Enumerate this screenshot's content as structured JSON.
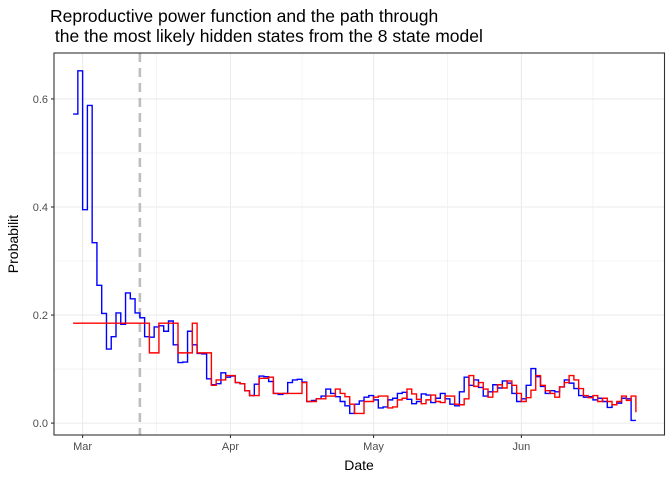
{
  "chart_data": {
    "type": "line",
    "title_lines": [
      "Reproductive power function and the path through",
      " the the most likely hidden states from the 8 state model"
    ],
    "xlabel": "Date",
    "ylabel": "Probabilit",
    "x_ticks": [
      {
        "label": "Mar",
        "date": "2020-03-01"
      },
      {
        "label": "Apr",
        "date": "2020-04-01"
      },
      {
        "label": "May",
        "date": "2020-05-01"
      },
      {
        "label": "Jun",
        "date": "2020-06-01"
      }
    ],
    "y_ticks": [
      0.0,
      0.2,
      0.4,
      0.6
    ],
    "y_tick_labels": [
      "0.0",
      "0.2",
      "0.4",
      "0.6"
    ],
    "xlim": [
      "2020-02-24",
      "2020-07-01"
    ],
    "ylim": [
      -0.022,
      0.685
    ],
    "grid": true,
    "vline": {
      "date": "2020-03-13",
      "style": "dashed",
      "color": "#bebebe"
    },
    "colors": {
      "series_blue": "#0000ff",
      "series_red": "#ff0000",
      "panel_border": "#333333",
      "grid": "#ebebeb"
    },
    "series": [
      {
        "color": "#0000ff",
        "step": true,
        "x": [
          "2020-02-28",
          "2020-02-29",
          "2020-03-01",
          "2020-03-02",
          "2020-03-03",
          "2020-03-04",
          "2020-03-05",
          "2020-03-06",
          "2020-03-07",
          "2020-03-08",
          "2020-03-09",
          "2020-03-10",
          "2020-03-11",
          "2020-03-12",
          "2020-03-13",
          "2020-03-14",
          "2020-03-15",
          "2020-03-16",
          "2020-03-17",
          "2020-03-18",
          "2020-03-19",
          "2020-03-20",
          "2020-03-21",
          "2020-03-22",
          "2020-03-23",
          "2020-03-24",
          "2020-03-25",
          "2020-03-26",
          "2020-03-27",
          "2020-03-28",
          "2020-03-29",
          "2020-03-30",
          "2020-03-31",
          "2020-04-01",
          "2020-04-02",
          "2020-04-03",
          "2020-04-04",
          "2020-04-05",
          "2020-04-06",
          "2020-04-07",
          "2020-04-08",
          "2020-04-09",
          "2020-04-10",
          "2020-04-11",
          "2020-04-12",
          "2020-04-13",
          "2020-04-14",
          "2020-04-15",
          "2020-04-16",
          "2020-04-17",
          "2020-04-18",
          "2020-04-19",
          "2020-04-20",
          "2020-04-21",
          "2020-04-22",
          "2020-04-23",
          "2020-04-24",
          "2020-04-25",
          "2020-04-26",
          "2020-04-27",
          "2020-04-28",
          "2020-04-29",
          "2020-04-30",
          "2020-05-01",
          "2020-05-02",
          "2020-05-03",
          "2020-05-04",
          "2020-05-05",
          "2020-05-06",
          "2020-05-07",
          "2020-05-08",
          "2020-05-09",
          "2020-05-10",
          "2020-05-11",
          "2020-05-12",
          "2020-05-13",
          "2020-05-14",
          "2020-05-15",
          "2020-05-16",
          "2020-05-17",
          "2020-05-18",
          "2020-05-19",
          "2020-05-20",
          "2020-05-21",
          "2020-05-22",
          "2020-05-23",
          "2020-05-24",
          "2020-05-25",
          "2020-05-26",
          "2020-05-27",
          "2020-05-28",
          "2020-05-29",
          "2020-05-30",
          "2020-05-31",
          "2020-06-01",
          "2020-06-02",
          "2020-06-03",
          "2020-06-04",
          "2020-06-05",
          "2020-06-06",
          "2020-06-07",
          "2020-06-08",
          "2020-06-09",
          "2020-06-10",
          "2020-06-11",
          "2020-06-12",
          "2020-06-13",
          "2020-06-14",
          "2020-06-15",
          "2020-06-16",
          "2020-06-17",
          "2020-06-18",
          "2020-06-19",
          "2020-06-20",
          "2020-06-21",
          "2020-06-22",
          "2020-06-23",
          "2020-06-24",
          "2020-06-25"
        ],
        "y": [
          0.572,
          0.652,
          0.395,
          0.588,
          0.334,
          0.255,
          0.203,
          0.137,
          0.16,
          0.204,
          0.183,
          0.241,
          0.23,
          0.204,
          0.195,
          0.16,
          0.159,
          0.178,
          0.18,
          0.17,
          0.189,
          0.145,
          0.112,
          0.113,
          0.17,
          0.145,
          0.129,
          0.128,
          0.082,
          0.071,
          0.073,
          0.093,
          0.085,
          0.087,
          0.075,
          0.073,
          0.06,
          0.051,
          0.072,
          0.087,
          0.086,
          0.077,
          0.055,
          0.053,
          0.055,
          0.075,
          0.08,
          0.081,
          0.076,
          0.04,
          0.042,
          0.045,
          0.05,
          0.063,
          0.055,
          0.049,
          0.04,
          0.032,
          0.018,
          0.035,
          0.041,
          0.048,
          0.051,
          0.043,
          0.028,
          0.03,
          0.043,
          0.046,
          0.055,
          0.057,
          0.044,
          0.036,
          0.04,
          0.054,
          0.052,
          0.038,
          0.046,
          0.055,
          0.045,
          0.035,
          0.032,
          0.058,
          0.085,
          0.07,
          0.08,
          0.066,
          0.05,
          0.058,
          0.071,
          0.065,
          0.078,
          0.074,
          0.055,
          0.04,
          0.045,
          0.07,
          0.101,
          0.086,
          0.068,
          0.055,
          0.06,
          0.058,
          0.067,
          0.08,
          0.074,
          0.064,
          0.051,
          0.048,
          0.049,
          0.043,
          0.046,
          0.04,
          0.029,
          0.034,
          0.037,
          0.046,
          0.045,
          0.005,
          0.005
        ]
      },
      {
        "color": "#ff0000",
        "step": true,
        "x": [
          "2020-02-28",
          "2020-03-14",
          "2020-03-15",
          "2020-03-17",
          "2020-03-20",
          "2020-03-21",
          "2020-03-22",
          "2020-03-24",
          "2020-03-25",
          "2020-03-27",
          "2020-03-28",
          "2020-03-29",
          "2020-03-31",
          "2020-04-02",
          "2020-04-03",
          "2020-04-04",
          "2020-04-05",
          "2020-04-07",
          "2020-04-09",
          "2020-04-10",
          "2020-04-13",
          "2020-04-16",
          "2020-04-17",
          "2020-04-19",
          "2020-04-21",
          "2020-04-23",
          "2020-04-24",
          "2020-04-25",
          "2020-04-26",
          "2020-04-27",
          "2020-04-29",
          "2020-05-01",
          "2020-05-02",
          "2020-05-04",
          "2020-05-05",
          "2020-05-06",
          "2020-05-07",
          "2020-05-08",
          "2020-05-09",
          "2020-05-10",
          "2020-05-11",
          "2020-05-12",
          "2020-05-13",
          "2020-05-14",
          "2020-05-15",
          "2020-05-16",
          "2020-05-18",
          "2020-05-19",
          "2020-05-20",
          "2020-05-21",
          "2020-05-22",
          "2020-05-23",
          "2020-05-24",
          "2020-05-25",
          "2020-05-26",
          "2020-05-27",
          "2020-05-28",
          "2020-05-29",
          "2020-05-30",
          "2020-05-31",
          "2020-06-01",
          "2020-06-02",
          "2020-06-03",
          "2020-06-04",
          "2020-06-05",
          "2020-06-06",
          "2020-06-07",
          "2020-06-08",
          "2020-06-09",
          "2020-06-10",
          "2020-06-11",
          "2020-06-12",
          "2020-06-13",
          "2020-06-14",
          "2020-06-15",
          "2020-06-16",
          "2020-06-17",
          "2020-06-18",
          "2020-06-19",
          "2020-06-20",
          "2020-06-21",
          "2020-06-22",
          "2020-06-23",
          "2020-06-24",
          "2020-06-25"
        ],
        "y": [
          0.185,
          0.185,
          0.13,
          0.185,
          0.185,
          0.13,
          0.13,
          0.185,
          0.13,
          0.13,
          0.07,
          0.08,
          0.088,
          0.075,
          0.073,
          0.06,
          0.051,
          0.083,
          0.085,
          0.055,
          0.055,
          0.075,
          0.04,
          0.045,
          0.05,
          0.063,
          0.055,
          0.049,
          0.035,
          0.018,
          0.04,
          0.048,
          0.05,
          0.028,
          0.03,
          0.043,
          0.046,
          0.063,
          0.054,
          0.044,
          0.036,
          0.043,
          0.052,
          0.04,
          0.038,
          0.05,
          0.035,
          0.034,
          0.045,
          0.088,
          0.068,
          0.075,
          0.063,
          0.048,
          0.058,
          0.071,
          0.065,
          0.078,
          0.07,
          0.055,
          0.04,
          0.047,
          0.061,
          0.088,
          0.07,
          0.06,
          0.055,
          0.048,
          0.067,
          0.075,
          0.088,
          0.08,
          0.064,
          0.051,
          0.047,
          0.051,
          0.04,
          0.046,
          0.04,
          0.034,
          0.04,
          0.05,
          0.042,
          0.05,
          0.02
        ]
      }
    ]
  }
}
